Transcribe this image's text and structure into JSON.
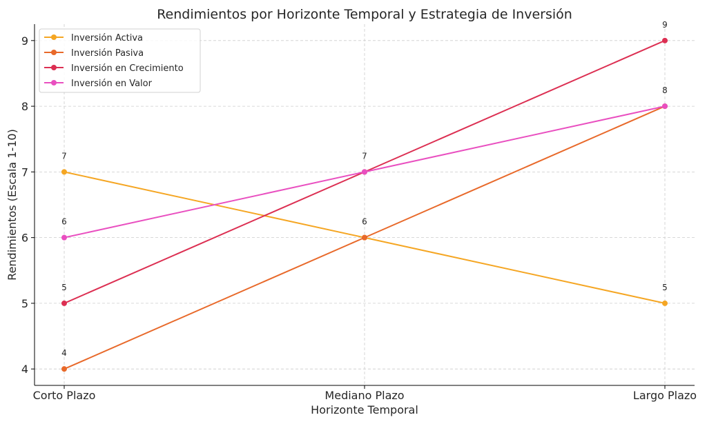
{
  "chart_data": {
    "type": "line",
    "title": "Rendimientos por Horizonte Temporal y Estrategia de Inversión",
    "xlabel": "Horizonte Temporal",
    "ylabel": "Rendimientos (Escala 1-10)",
    "categories": [
      "Corto Plazo",
      "Mediano Plazo",
      "Largo Plazo"
    ],
    "ylim": [
      3.75,
      9.25
    ],
    "yticks": [
      4,
      5,
      6,
      7,
      8,
      9
    ],
    "grid": true,
    "legend_position": "top-left",
    "series": [
      {
        "name": "Inversión Activa",
        "values": [
          7,
          6,
          5
        ],
        "color": "#F5A623",
        "labels": [
          "7",
          "",
          "5"
        ]
      },
      {
        "name": "Inversión Pasiva",
        "values": [
          4,
          6,
          8
        ],
        "color": "#E8692A",
        "labels": [
          "4",
          "6",
          ""
        ]
      },
      {
        "name": "Inversión en Crecimiento",
        "values": [
          5,
          7,
          9
        ],
        "color": "#DC2F52",
        "labels": [
          "5",
          "",
          "9"
        ]
      },
      {
        "name": "Inversión en Valor",
        "values": [
          6,
          7,
          8
        ],
        "color": "#E94FC0",
        "labels": [
          "6",
          "7",
          "8"
        ]
      }
    ]
  }
}
